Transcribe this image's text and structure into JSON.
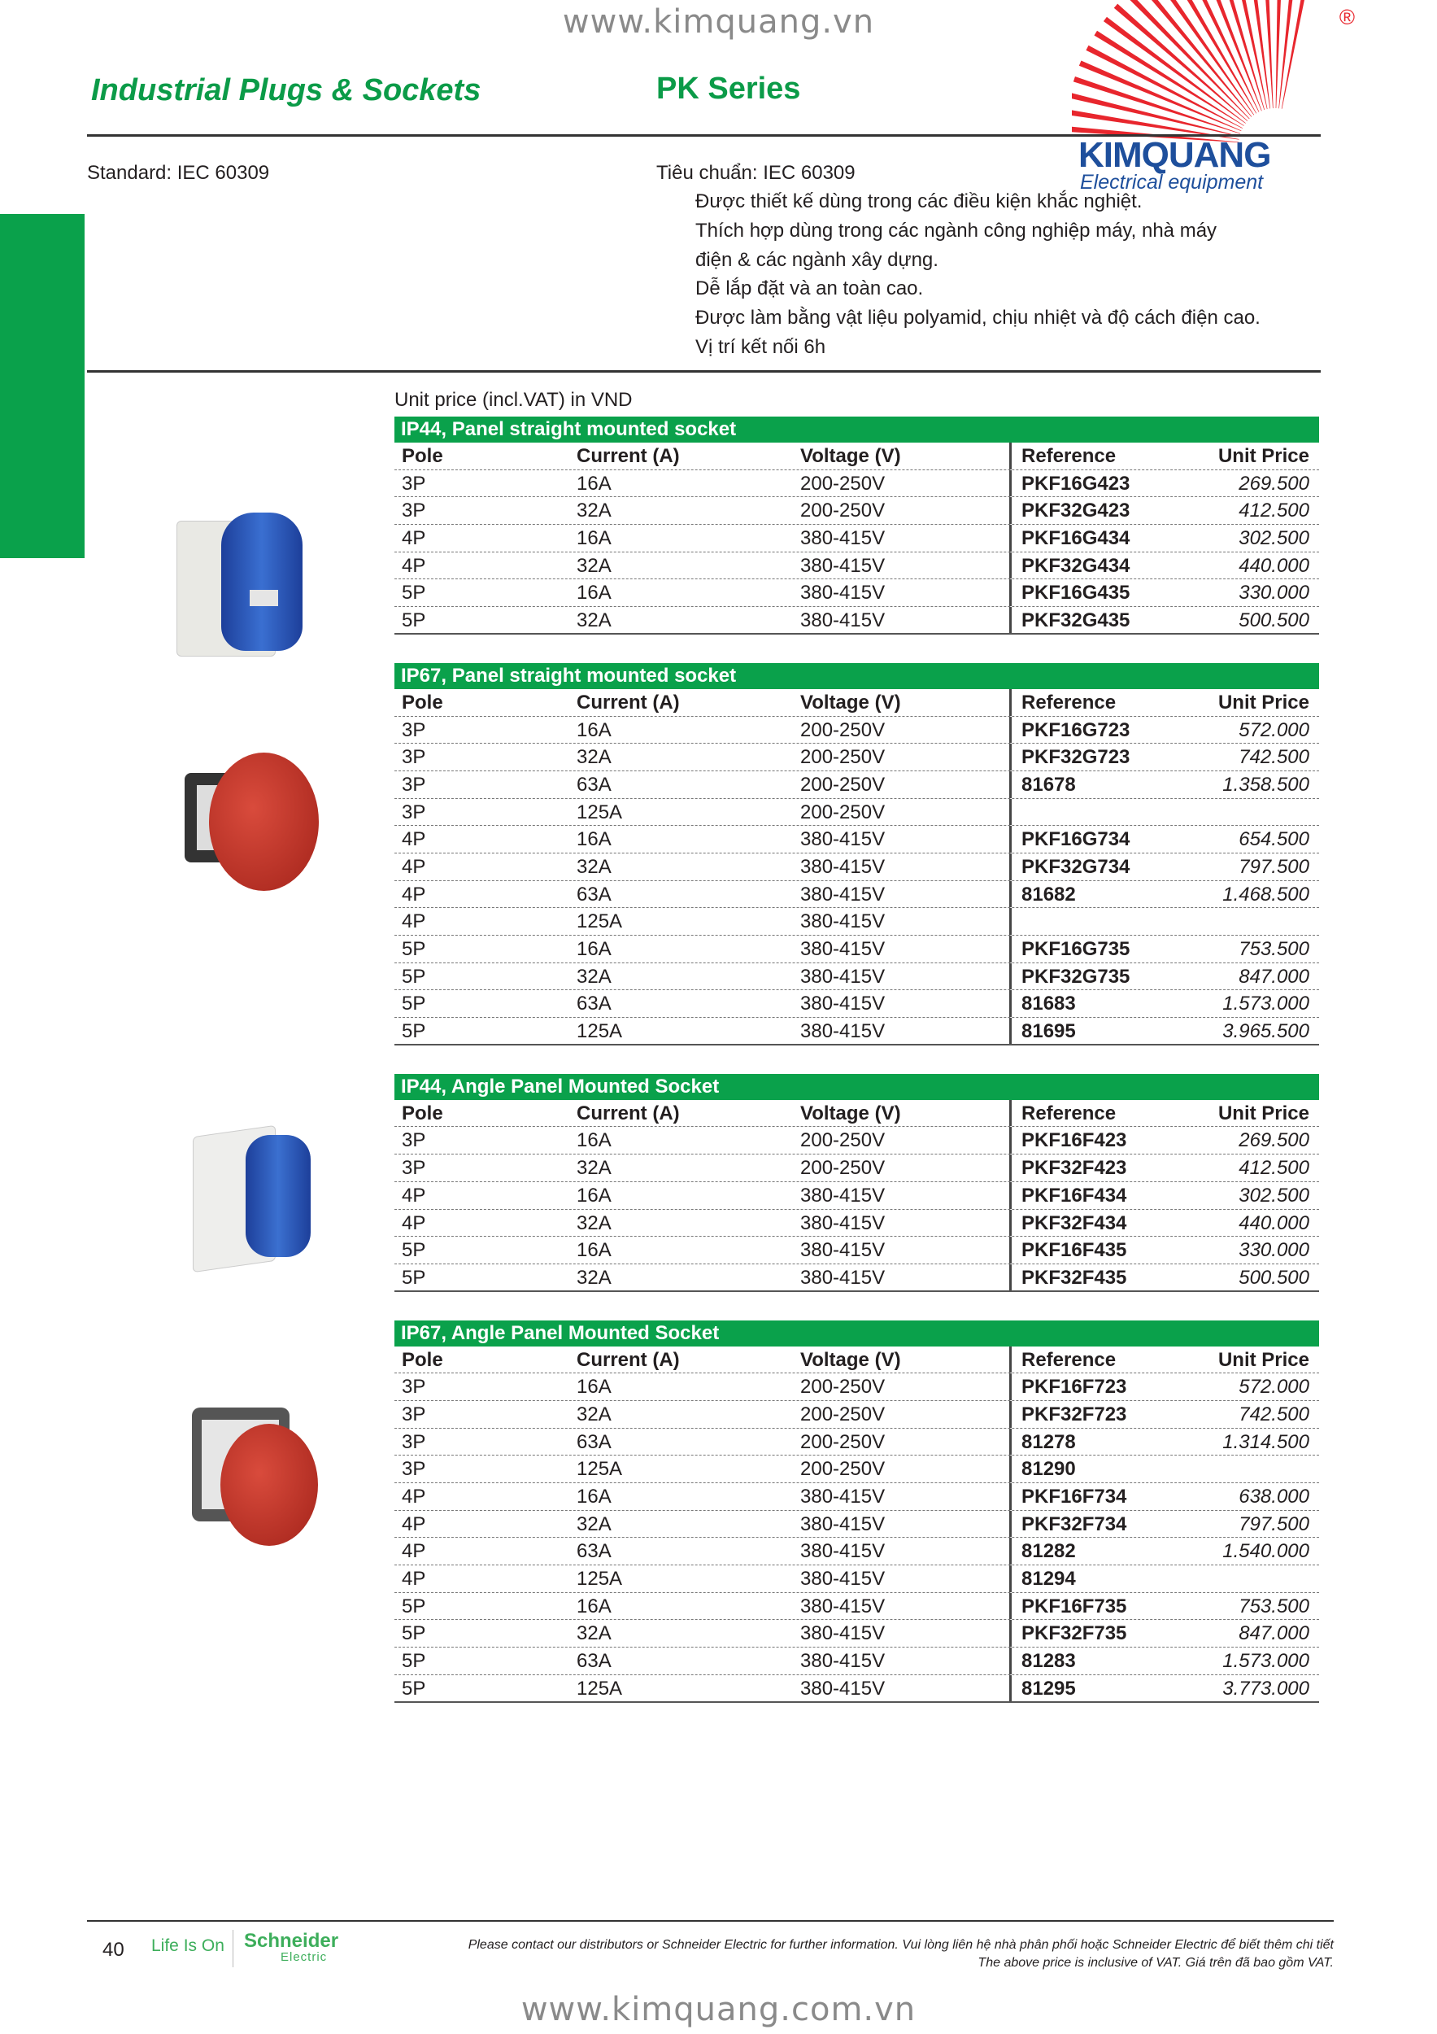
{
  "header": {
    "top_url": "www.kimquang.vn",
    "title": "Industrial Plugs & Sockets",
    "series": "PK Series",
    "standard_en": "Standard: IEC 60309",
    "standard_vi": "Tiêu chuẩn: IEC 60309",
    "features_vi": [
      "Được thiết kế dùng trong các điều kiện khắc nghiệt.",
      "Thích hợp dùng trong các ngành công nghiệp máy, nhà máy",
      "điện & các ngành xây dựng.",
      "Dễ lắp đặt và an toàn cao.",
      "Được làm bằng vật liệu polyamid, chịu nhiệt và độ cách điện cao.",
      "Vị trí kết nối 6h"
    ]
  },
  "logo": {
    "brand": "KIMQUANG",
    "tagline": "Electrical equipment",
    "registered": "®",
    "colors": {
      "rays": "#e8262d",
      "text": "#1e4f9c"
    }
  },
  "price_note": "Unit price (incl.VAT) in VND",
  "columns": [
    "Pole",
    "Current (A)",
    "Voltage (V)",
    "Reference",
    "Unit Price"
  ],
  "tables": [
    {
      "title": "IP44, Panel straight mounted socket",
      "image": "blue-straight-socket",
      "rows": [
        [
          "3P",
          "16A",
          "200-250V",
          "PKF16G423",
          "269.500"
        ],
        [
          "3P",
          "32A",
          "200-250V",
          "PKF32G423",
          "412.500"
        ],
        [
          "4P",
          "16A",
          "380-415V",
          "PKF16G434",
          "302.500"
        ],
        [
          "4P",
          "32A",
          "380-415V",
          "PKF32G434",
          "440.000"
        ],
        [
          "5P",
          "16A",
          "380-415V",
          "PKF16G435",
          "330.000"
        ],
        [
          "5P",
          "32A",
          "380-415V",
          "PKF32G435",
          "500.500"
        ]
      ]
    },
    {
      "title": "IP67, Panel straight mounted socket",
      "image": "red-straight-socket",
      "rows": [
        [
          "3P",
          "16A",
          "200-250V",
          "PKF16G723",
          "572.000"
        ],
        [
          "3P",
          "32A",
          "200-250V",
          "PKF32G723",
          "742.500"
        ],
        [
          "3P",
          "63A",
          "200-250V",
          "81678",
          "1.358.500"
        ],
        [
          "3P",
          "125A",
          "200-250V",
          "",
          ""
        ],
        [
          "4P",
          "16A",
          "380-415V",
          "PKF16G734",
          "654.500"
        ],
        [
          "4P",
          "32A",
          "380-415V",
          "PKF32G734",
          "797.500"
        ],
        [
          "4P",
          "63A",
          "380-415V",
          "81682",
          "1.468.500"
        ],
        [
          "4P",
          "125A",
          "380-415V",
          "",
          ""
        ],
        [
          "5P",
          "16A",
          "380-415V",
          "PKF16G735",
          "753.500"
        ],
        [
          "5P",
          "32A",
          "380-415V",
          "PKF32G735",
          "847.000"
        ],
        [
          "5P",
          "63A",
          "380-415V",
          "81683",
          "1.573.000"
        ],
        [
          "5P",
          "125A",
          "380-415V",
          "81695",
          "3.965.500"
        ]
      ]
    },
    {
      "title": "IP44, Angle Panel Mounted Socket",
      "image": "blue-angle-socket",
      "rows": [
        [
          "3P",
          "16A",
          "200-250V",
          "PKF16F423",
          "269.500"
        ],
        [
          "3P",
          "32A",
          "200-250V",
          "PKF32F423",
          "412.500"
        ],
        [
          "4P",
          "16A",
          "380-415V",
          "PKF16F434",
          "302.500"
        ],
        [
          "4P",
          "32A",
          "380-415V",
          "PKF32F434",
          "440.000"
        ],
        [
          "5P",
          "16A",
          "380-415V",
          "PKF16F435",
          "330.000"
        ],
        [
          "5P",
          "32A",
          "380-415V",
          "PKF32F435",
          "500.500"
        ]
      ]
    },
    {
      "title": "IP67, Angle Panel Mounted Socket",
      "image": "red-angle-socket",
      "rows": [
        [
          "3P",
          "16A",
          "200-250V",
          "PKF16F723",
          "572.000"
        ],
        [
          "3P",
          "32A",
          "200-250V",
          "PKF32F723",
          "742.500"
        ],
        [
          "3P",
          "63A",
          "200-250V",
          "81278",
          "1.314.500"
        ],
        [
          "3P",
          "125A",
          "200-250V",
          "81290",
          ""
        ],
        [
          "4P",
          "16A",
          "380-415V",
          "PKF16F734",
          "638.000"
        ],
        [
          "4P",
          "32A",
          "380-415V",
          "PKF32F734",
          "797.500"
        ],
        [
          "4P",
          "63A",
          "380-415V",
          "81282",
          "1.540.000"
        ],
        [
          "4P",
          "125A",
          "380-415V",
          "81294",
          ""
        ],
        [
          "5P",
          "16A",
          "380-415V",
          "PKF16F735",
          "753.500"
        ],
        [
          "5P",
          "32A",
          "380-415V",
          "PKF32F735",
          "847.000"
        ],
        [
          "5P",
          "63A",
          "380-415V",
          "81283",
          "1.573.000"
        ],
        [
          "5P",
          "125A",
          "380-415V",
          "81295",
          "3.773.000"
        ]
      ]
    }
  ],
  "footer": {
    "page_number": "40",
    "life_is_on": "Life Is On",
    "schneider": "Schneider",
    "electric": "Electric",
    "note_line1": "Please contact our distributors or Schneider Electric for further information. Vui lòng liên hệ nhà phân phối hoặc Schneider Electric để biết thêm chi tiết",
    "note_line2": "The above price is inclusive of VAT. Giá trên đã bao gồm VAT.",
    "bottom_url": "www.kimquang.com.vn"
  },
  "colors": {
    "green": "#0aa14b",
    "title_green": "#0b9b48"
  }
}
